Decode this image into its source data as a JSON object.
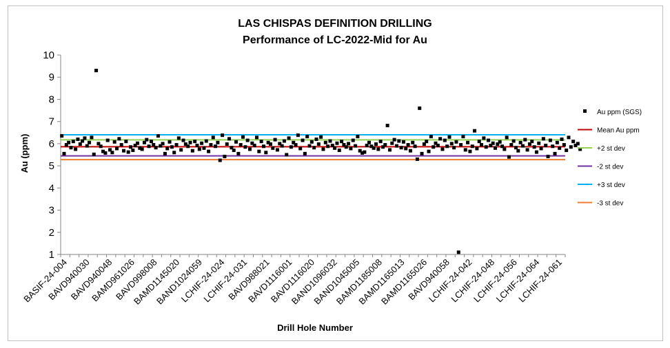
{
  "chart_data": {
    "type": "scatter",
    "title": "LAS CHISPAS DEFINITION DRILLING",
    "subtitle": "Performance of LC-2022-Mid for Au",
    "xlabel": "Drill Hole Number",
    "ylabel": "Au (ppm)",
    "ylim": [
      1,
      10
    ],
    "yticks": [
      1,
      2,
      3,
      4,
      5,
      6,
      7,
      8,
      9,
      10
    ],
    "n_samples": 220,
    "categories": [
      "BASIF-24-004",
      "BAVD940030",
      "BAVD940048",
      "BAMD961026",
      "BAVD998008",
      "BAMD1145020",
      "BAND1024059",
      "LCHIF-24-024",
      "LCHIF-24-031",
      "BAVD988021",
      "BAVD1116001",
      "BAVD1116020",
      "BAND1096032",
      "BAND1045005",
      "BAMD1185008",
      "BAMD1165013",
      "BAMD1165026",
      "BAVD940058",
      "LCHIF-24-042",
      "LCHIF-24-048",
      "LCHIF-24-056",
      "LCHIF-24-064",
      "LCHIF-24-061"
    ],
    "series": [
      {
        "name": "Au ppm (SGS)",
        "marker": "square",
        "color": "#000000",
        "values": [
          6.35,
          5.55,
          5.95,
          6.05,
          5.82,
          6.1,
          5.75,
          6.2,
          5.98,
          6.12,
          6.25,
          5.9,
          6.05,
          6.28,
          5.52,
          9.3,
          6.0,
          5.88,
          5.65,
          5.58,
          6.15,
          5.72,
          5.6,
          6.08,
          5.78,
          6.22,
          5.95,
          5.68,
          6.1,
          5.62,
          5.85,
          5.7,
          5.92,
          6.02,
          5.8,
          5.75,
          6.05,
          6.18,
          5.88,
          6.1,
          5.95,
          5.82,
          6.35,
          5.9,
          6.0,
          5.55,
          5.78,
          6.08,
          5.85,
          5.6,
          5.95,
          6.25,
          5.72,
          6.15,
          5.98,
          5.88,
          6.05,
          5.68,
          6.1,
          5.92,
          5.75,
          6.02,
          5.8,
          6.12,
          5.65,
          5.95,
          6.28,
          5.88,
          6.05,
          5.25,
          6.38,
          5.42,
          5.98,
          6.22,
          5.82,
          5.7,
          6.08,
          5.55,
          5.95,
          6.3,
          5.85,
          6.15,
          5.75,
          6.02,
          5.92,
          6.28,
          5.65,
          6.1,
          5.88,
          5.6,
          6.05,
          5.98,
          5.8,
          6.18,
          5.72,
          6.0,
          5.9,
          6.12,
          5.5,
          6.25,
          5.85,
          6.05,
          5.95,
          6.38,
          5.78,
          6.15,
          5.55,
          6.32,
          5.9,
          6.08,
          5.82,
          6.2,
          5.98,
          6.3,
          5.75,
          6.05,
          5.88,
          6.12,
          5.92,
          5.8,
          6.02,
          5.7,
          6.1,
          5.95,
          5.85,
          6.0,
          5.78,
          6.15,
          5.9,
          6.32,
          5.68,
          5.58,
          5.62,
          5.92,
          6.05,
          5.88,
          5.8,
          5.98,
          5.75,
          6.1,
          5.85,
          5.95,
          6.82,
          5.72,
          6.02,
          6.18,
          5.9,
          6.12,
          5.82,
          6.08,
          5.78,
          5.95,
          5.68,
          6.05,
          5.88,
          5.3,
          7.6,
          5.55,
          5.98,
          6.1,
          5.65,
          6.32,
          5.85,
          6.02,
          5.92,
          6.22,
          5.75,
          6.15,
          5.88,
          6.3,
          6.0,
          5.82,
          6.08,
          1.1,
          5.95,
          6.32,
          5.72,
          6.05,
          5.65,
          5.88,
          6.58,
          5.78,
          6.1,
          5.95,
          6.25,
          5.85,
          6.15,
          5.92,
          6.02,
          5.8,
          5.98,
          6.08,
          5.88,
          5.75,
          6.28,
          5.4,
          5.95,
          6.12,
          5.82,
          5.68,
          6.05,
          5.9,
          6.18,
          5.72,
          5.98,
          6.1,
          5.85,
          5.62,
          6.02,
          5.78,
          6.22,
          5.92,
          5.42,
          6.15,
          5.88,
          5.55,
          6.05,
          5.8,
          6.2,
          5.95,
          5.7,
          6.28,
          5.85,
          6.1,
          5.92,
          6.0,
          5.75
        ]
      }
    ],
    "reference_lines": [
      {
        "name": "Mean Au ppm",
        "value": 5.86,
        "color": "#c00000"
      },
      {
        "name": "+2 st dev",
        "value": 6.17,
        "color": "#92d050"
      },
      {
        "name": "-2 st dev",
        "value": 5.45,
        "color": "#7030a0"
      },
      {
        "name": "+3 st dev",
        "value": 6.4,
        "color": "#00b0f0"
      },
      {
        "name": "-3 st dev",
        "value": 5.28,
        "color": "#ed7d31"
      }
    ],
    "legend_position": "right"
  }
}
